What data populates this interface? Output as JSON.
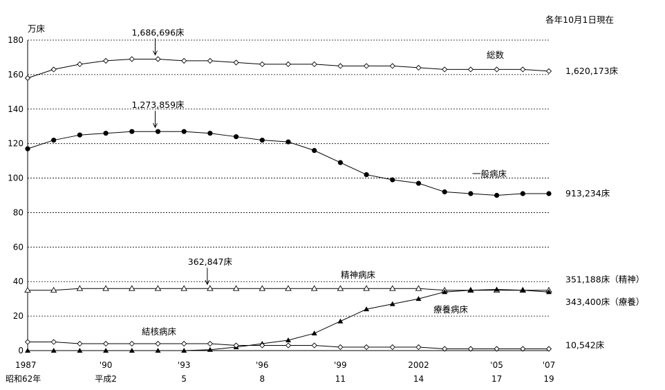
{
  "chart_data": {
    "type": "line",
    "note": "各年10月1日現在",
    "ylabel": "万床",
    "ylim": [
      0,
      180
    ],
    "yticks": [
      0,
      20,
      40,
      60,
      80,
      100,
      120,
      140,
      160,
      180
    ],
    "grid": true,
    "x": [
      1987,
      1988,
      1989,
      1990,
      1991,
      1992,
      1993,
      1994,
      1995,
      1996,
      1997,
      1998,
      1999,
      2000,
      2001,
      2002,
      2003,
      2004,
      2005,
      2006,
      2007
    ],
    "xticks": [
      {
        "x": 1987,
        "top": "1987",
        "bottom": "昭和62年"
      },
      {
        "x": 1990,
        "top": "'90",
        "bottom": "平成2"
      },
      {
        "x": 1993,
        "top": "'93",
        "bottom": "5"
      },
      {
        "x": 1996,
        "top": "'96",
        "bottom": "8"
      },
      {
        "x": 1999,
        "top": "'99",
        "bottom": "11"
      },
      {
        "x": 2002,
        "top": "2002",
        "bottom": "14"
      },
      {
        "x": 2005,
        "top": "'05",
        "bottom": "17"
      },
      {
        "x": 2007,
        "top": "'07",
        "bottom": "19"
      }
    ],
    "series": [
      {
        "name": "総数",
        "marker": "open-diamond",
        "values": [
          158,
          163,
          166,
          168,
          169,
          169,
          168,
          168,
          167,
          166,
          166,
          166,
          165,
          165,
          165,
          164,
          163,
          163,
          163,
          163,
          162
        ]
      },
      {
        "name": "一般病床",
        "marker": "filled-circle",
        "values": [
          117,
          122,
          125,
          126,
          127,
          127,
          127,
          126,
          124,
          122,
          121,
          116,
          109,
          102,
          99,
          97,
          92,
          91,
          90,
          91,
          91
        ]
      },
      {
        "name": "精神病床",
        "marker": "open-triangle",
        "values": [
          35,
          35,
          36,
          36,
          36,
          36,
          36,
          36,
          36,
          36,
          36,
          36,
          36,
          36,
          36,
          36,
          35,
          35,
          35,
          35,
          35
        ]
      },
      {
        "name": "療養病床",
        "marker": "filled-triangle",
        "values": [
          0,
          0,
          0,
          0,
          0,
          0,
          0,
          0.5,
          2,
          4,
          6,
          10,
          17,
          24,
          27,
          30,
          34,
          35,
          35.5,
          35,
          34
        ]
      },
      {
        "name": "結核病床",
        "marker": "open-diamond",
        "values": [
          5,
          5,
          4,
          4,
          4,
          4,
          4,
          4,
          3,
          3,
          3,
          3,
          2,
          2,
          2,
          2,
          1,
          1,
          1,
          1,
          1
        ]
      }
    ],
    "annotations": [
      {
        "text": "1,686,696床",
        "x": 1992,
        "y": 169
      },
      {
        "text": "1,273,859床",
        "x": 1992,
        "y": 127
      },
      {
        "text": "362,847床",
        "x": 1994,
        "y": 36
      }
    ],
    "end_labels": [
      {
        "text": "1,620,173床",
        "y": 162
      },
      {
        "text": "913,234床",
        "y": 91
      },
      {
        "text": "351,188床（精神）",
        "y": 41
      },
      {
        "text": "343,400床（療養）",
        "y": 28
      },
      {
        "text": "10,542床",
        "y": 3
      }
    ]
  }
}
